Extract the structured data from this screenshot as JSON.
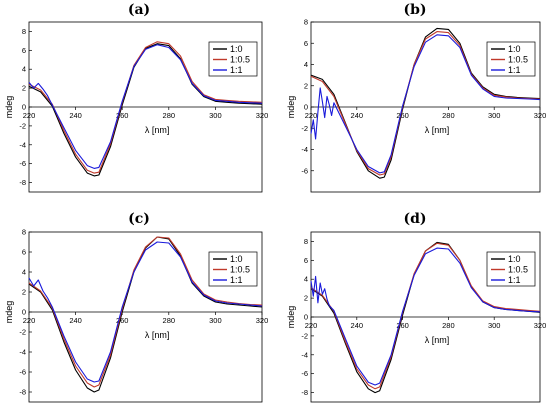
{
  "colors": {
    "black": "#000000",
    "red": "#c0392b",
    "blue": "#1a1adb"
  },
  "chart_data": [
    {
      "type": "line",
      "panel_label": "(a)",
      "xlabel": "λ [nm]",
      "ylabel": "mdeg",
      "xlim": [
        220,
        320
      ],
      "ylim": [
        -9,
        9
      ],
      "xticks": [
        220,
        240,
        260,
        280,
        300,
        320
      ],
      "yticks": [
        -8,
        -6,
        -4,
        -2,
        0,
        2,
        4,
        6,
        8
      ],
      "legend_position": "top-right",
      "grid": false,
      "series": [
        {
          "name": "1:0",
          "color": "#000000",
          "x": [
            220,
            225,
            230,
            235,
            240,
            245,
            248,
            250,
            255,
            260,
            265,
            270,
            275,
            280,
            285,
            290,
            295,
            300,
            305,
            310,
            315,
            320
          ],
          "y": [
            2.2,
            1.6,
            0.1,
            -2.8,
            -5.3,
            -7.0,
            -7.3,
            -7.2,
            -4.2,
            0.2,
            4.2,
            6.2,
            6.7,
            6.5,
            5.1,
            2.4,
            1.1,
            0.6,
            0.5,
            0.4,
            0.35,
            0.3
          ]
        },
        {
          "name": "1:0.5",
          "color": "#c0392b",
          "x": [
            220,
            225,
            230,
            235,
            240,
            245,
            248,
            250,
            255,
            260,
            265,
            270,
            275,
            280,
            285,
            290,
            295,
            300,
            305,
            310,
            315,
            320
          ],
          "y": [
            2.4,
            1.8,
            0.3,
            -2.5,
            -5.0,
            -6.7,
            -7.0,
            -6.9,
            -3.9,
            0.5,
            4.4,
            6.3,
            6.9,
            6.7,
            5.4,
            2.7,
            1.3,
            0.8,
            0.7,
            0.6,
            0.55,
            0.5
          ]
        },
        {
          "name": "1:1",
          "color": "#1a1adb",
          "x": [
            220,
            222,
            224,
            226,
            228,
            230,
            235,
            240,
            245,
            248,
            250,
            255,
            260,
            265,
            270,
            275,
            280,
            285,
            290,
            295,
            300,
            305,
            310,
            315,
            320
          ],
          "y": [
            2.6,
            2.0,
            2.5,
            1.9,
            1.2,
            0.2,
            -2.2,
            -4.6,
            -6.2,
            -6.5,
            -6.4,
            -3.7,
            0.6,
            4.3,
            6.1,
            6.6,
            6.3,
            5.0,
            2.5,
            1.2,
            0.7,
            0.6,
            0.5,
            0.45,
            0.4
          ]
        }
      ]
    },
    {
      "type": "line",
      "panel_label": "(b)",
      "xlabel": "λ [nm]",
      "ylabel": "mdeg",
      "xlim": [
        220,
        320
      ],
      "ylim": [
        -8,
        8
      ],
      "xticks": [
        220,
        240,
        260,
        280,
        300,
        320
      ],
      "yticks": [
        -6,
        -4,
        -2,
        0,
        2,
        4,
        6,
        8
      ],
      "legend_position": "top-right",
      "grid": false,
      "series": [
        {
          "name": "1:0",
          "color": "#000000",
          "x": [
            220,
            225,
            230,
            235,
            240,
            245,
            250,
            252,
            255,
            260,
            265,
            270,
            275,
            280,
            285,
            290,
            295,
            300,
            305,
            310,
            315,
            320
          ],
          "y": [
            3.0,
            2.6,
            1.2,
            -1.5,
            -4.2,
            -6.0,
            -6.7,
            -6.6,
            -5.0,
            -0.2,
            4.0,
            6.6,
            7.4,
            7.3,
            6.0,
            3.2,
            1.9,
            1.2,
            1.0,
            0.9,
            0.85,
            0.8
          ]
        },
        {
          "name": "1:0.5",
          "color": "#c0392b",
          "x": [
            220,
            225,
            230,
            235,
            240,
            245,
            250,
            252,
            255,
            260,
            265,
            270,
            275,
            280,
            285,
            290,
            295,
            300,
            305,
            310,
            315,
            320
          ],
          "y": [
            2.9,
            2.4,
            1.0,
            -1.6,
            -4.1,
            -5.8,
            -6.4,
            -6.3,
            -4.7,
            0.0,
            4.0,
            6.4,
            7.1,
            7.0,
            5.8,
            3.1,
            1.8,
            1.1,
            0.95,
            0.85,
            0.8,
            0.75
          ]
        },
        {
          "name": "1:1",
          "color": "#1a1adb",
          "x": [
            220,
            221,
            222,
            223,
            224,
            225,
            226,
            227,
            228,
            229,
            230,
            235,
            240,
            245,
            250,
            252,
            255,
            260,
            265,
            270,
            275,
            280,
            285,
            290,
            295,
            300,
            305,
            310,
            315,
            320
          ],
          "y": [
            -2.5,
            -1.2,
            -3.0,
            -0.5,
            1.8,
            0.5,
            -1.0,
            1.0,
            0.2,
            -0.8,
            0.4,
            -1.8,
            -4.0,
            -5.6,
            -6.2,
            -6.1,
            -4.5,
            0.1,
            3.8,
            6.1,
            6.8,
            6.7,
            5.6,
            3.0,
            1.7,
            1.0,
            0.85,
            0.8,
            0.75,
            0.7
          ]
        }
      ]
    },
    {
      "type": "line",
      "panel_label": "(c)",
      "xlabel": "λ [nm]",
      "ylabel": "mdeg",
      "xlim": [
        220,
        320
      ],
      "ylim": [
        -9,
        8
      ],
      "xticks": [
        220,
        240,
        260,
        280,
        300,
        320
      ],
      "yticks": [
        -8,
        -6,
        -4,
        -2,
        0,
        2,
        4,
        6,
        8
      ],
      "legend_position": "top-right",
      "grid": false,
      "series": [
        {
          "name": "1:0",
          "color": "#000000",
          "x": [
            220,
            225,
            230,
            235,
            240,
            245,
            248,
            250,
            255,
            260,
            265,
            270,
            275,
            280,
            285,
            290,
            295,
            300,
            305,
            310,
            315,
            320
          ],
          "y": [
            2.8,
            2.0,
            0.2,
            -3.0,
            -5.8,
            -7.6,
            -8.0,
            -7.8,
            -4.6,
            0.0,
            4.0,
            6.4,
            7.5,
            7.3,
            5.6,
            2.9,
            1.6,
            1.0,
            0.8,
            0.7,
            0.6,
            0.5
          ]
        },
        {
          "name": "1:0.5",
          "color": "#c0392b",
          "x": [
            220,
            225,
            230,
            235,
            240,
            245,
            248,
            250,
            255,
            260,
            265,
            270,
            275,
            280,
            285,
            290,
            295,
            300,
            305,
            310,
            315,
            320
          ],
          "y": [
            2.9,
            2.1,
            0.4,
            -2.7,
            -5.4,
            -7.1,
            -7.5,
            -7.3,
            -4.3,
            0.3,
            4.2,
            6.5,
            7.5,
            7.4,
            5.8,
            3.2,
            1.8,
            1.2,
            1.0,
            0.85,
            0.75,
            0.7
          ]
        },
        {
          "name": "1:1",
          "color": "#1a1adb",
          "x": [
            220,
            222,
            224,
            226,
            228,
            230,
            235,
            240,
            245,
            248,
            250,
            255,
            260,
            265,
            270,
            275,
            280,
            285,
            290,
            295,
            300,
            305,
            310,
            315,
            320
          ],
          "y": [
            3.4,
            2.6,
            3.2,
            2.1,
            1.4,
            0.5,
            -2.4,
            -5.0,
            -6.7,
            -7.0,
            -6.9,
            -4.0,
            0.5,
            4.0,
            6.2,
            7.0,
            6.9,
            5.5,
            3.0,
            1.7,
            1.1,
            0.9,
            0.8,
            0.7,
            0.6
          ]
        }
      ]
    },
    {
      "type": "line",
      "panel_label": "(d)",
      "xlabel": "λ [nm]",
      "ylabel": "mdeg",
      "xlim": [
        220,
        320
      ],
      "ylim": [
        -9,
        9
      ],
      "xticks": [
        220,
        240,
        260,
        280,
        300,
        320
      ],
      "yticks": [
        -8,
        -6,
        -4,
        -2,
        0,
        2,
        4,
        6,
        8
      ],
      "legend_position": "top-right",
      "grid": false,
      "series": [
        {
          "name": "1:0",
          "color": "#000000",
          "x": [
            220,
            225,
            230,
            235,
            240,
            245,
            248,
            250,
            255,
            260,
            265,
            270,
            275,
            280,
            285,
            290,
            295,
            300,
            305,
            310,
            315,
            320
          ],
          "y": [
            3.0,
            2.2,
            0.4,
            -2.8,
            -5.8,
            -7.6,
            -8.0,
            -7.8,
            -4.5,
            0.2,
            4.5,
            7.0,
            7.9,
            7.7,
            6.0,
            3.2,
            1.6,
            1.0,
            0.8,
            0.7,
            0.6,
            0.5
          ]
        },
        {
          "name": "1:0.5",
          "color": "#c0392b",
          "x": [
            220,
            225,
            230,
            235,
            240,
            245,
            248,
            250,
            255,
            260,
            265,
            270,
            275,
            280,
            285,
            290,
            295,
            300,
            305,
            310,
            315,
            320
          ],
          "y": [
            3.1,
            2.3,
            0.6,
            -2.6,
            -5.5,
            -7.2,
            -7.6,
            -7.4,
            -4.2,
            0.5,
            4.6,
            7.0,
            7.8,
            7.6,
            6.0,
            3.3,
            1.7,
            1.1,
            0.9,
            0.8,
            0.7,
            0.6
          ]
        },
        {
          "name": "1:1",
          "color": "#1a1adb",
          "x": [
            220,
            221,
            222,
            223,
            224,
            225,
            226,
            227,
            228,
            230,
            235,
            240,
            245,
            248,
            250,
            255,
            260,
            265,
            270,
            275,
            280,
            285,
            290,
            295,
            300,
            305,
            310,
            315,
            320
          ],
          "y": [
            3.8,
            2.2,
            4.3,
            1.5,
            3.6,
            2.4,
            3.0,
            1.9,
            1.2,
            0.7,
            -2.3,
            -5.2,
            -6.9,
            -7.2,
            -7.0,
            -4.0,
            0.6,
            4.4,
            6.7,
            7.3,
            7.2,
            5.7,
            3.1,
            1.6,
            1.0,
            0.8,
            0.7,
            0.6,
            0.55
          ]
        }
      ]
    }
  ]
}
